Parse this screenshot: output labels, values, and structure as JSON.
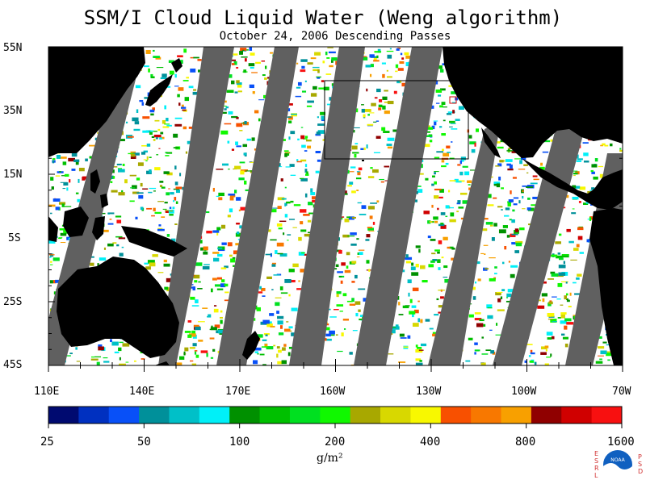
{
  "title": "SSM/I Cloud Liquid Water (Weng algorithm)",
  "subtitle": "October 24, 2006  Descending Passes",
  "latitude_labels": [
    "55N",
    "35N",
    "15N",
    "5S",
    "25S",
    "45S"
  ],
  "longitude_labels": [
    "110E",
    "140E",
    "170E",
    "160W",
    "130W",
    "100W",
    "70W"
  ],
  "colorbar": {
    "tick_labels": [
      "25",
      "50",
      "100",
      "200",
      "400",
      "800",
      "1600"
    ],
    "unit": "g/m²",
    "colors": [
      "#000a70",
      "#0030c0",
      "#0850f8",
      "#00909a",
      "#00c0c8",
      "#00f0f8",
      "#009000",
      "#00c000",
      "#00e020",
      "#10f800",
      "#a8a800",
      "#d8d800",
      "#f8f800",
      "#f85000",
      "#f87800",
      "#f8a000",
      "#900000",
      "#d00000",
      "#f81010"
    ]
  },
  "map_colors": {
    "land": "#000000",
    "no_data": "#606060",
    "clear": "#ffffff"
  },
  "logo": {
    "name": "noaa-logo",
    "text": "NOAA",
    "left_letters": [
      "E",
      "S",
      "R",
      "L"
    ],
    "right_letters": [
      "P",
      "S",
      "D"
    ]
  }
}
